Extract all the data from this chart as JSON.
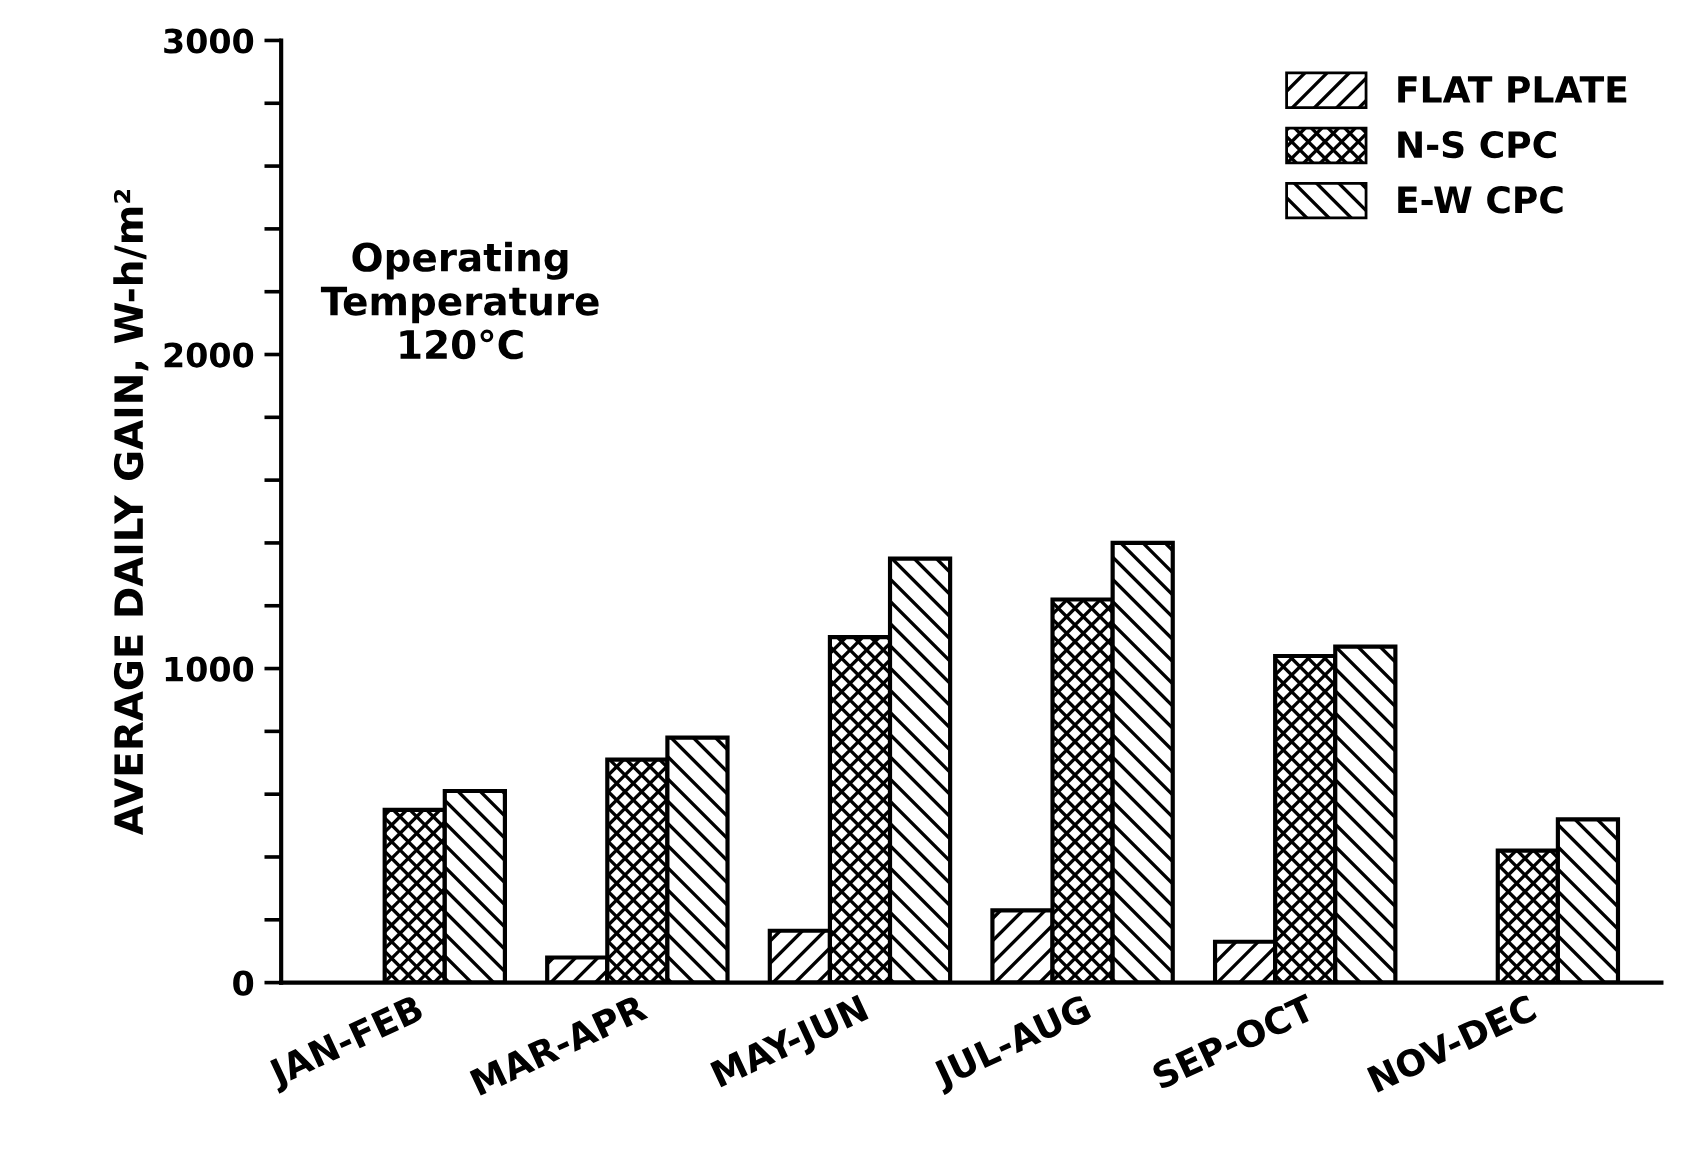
{
  "chart_data": {
    "type": "bar",
    "ylabel": "AVERAGE DAILY GAIN, W-h/m²",
    "categories": [
      "JAN-FEB",
      "MAR-APR",
      "MAY-JUN",
      "JUL-AUG",
      "SEP-OCT",
      "NOV-DEC"
    ],
    "series": [
      {
        "name": "FLAT PLATE",
        "color": "#000000",
        "values": [
          null,
          80,
          165,
          230,
          130,
          null
        ]
      },
      {
        "name": "N-S CPC",
        "color": "#000000",
        "values": [
          550,
          710,
          1100,
          1220,
          1040,
          420
        ]
      },
      {
        "name": "E-W CPC",
        "color": "#000000",
        "values": [
          610,
          780,
          1350,
          1400,
          1070,
          520
        ]
      }
    ],
    "ylim": [
      0,
      3000
    ],
    "yticks": [
      0,
      {
        "value": 200,
        "label": null
      },
      {
        "value": 400,
        "label": null
      },
      {
        "value": 600,
        "label": null
      },
      {
        "value": 800,
        "label": null
      },
      1000,
      {
        "value": 1200,
        "label": null
      },
      {
        "value": 1400,
        "label": null
      },
      {
        "value": 1600,
        "label": null
      },
      {
        "value": 1800,
        "label": null
      },
      2000,
      {
        "value": 2200,
        "label": null
      },
      {
        "value": 2400,
        "label": null
      },
      {
        "value": 2600,
        "label": null
      },
      {
        "value": 2800,
        "label": null
      },
      3000
    ],
    "annotations": [
      "Operating\nTemperature\n120°C"
    ],
    "legend": "top right",
    "grid": false
  }
}
